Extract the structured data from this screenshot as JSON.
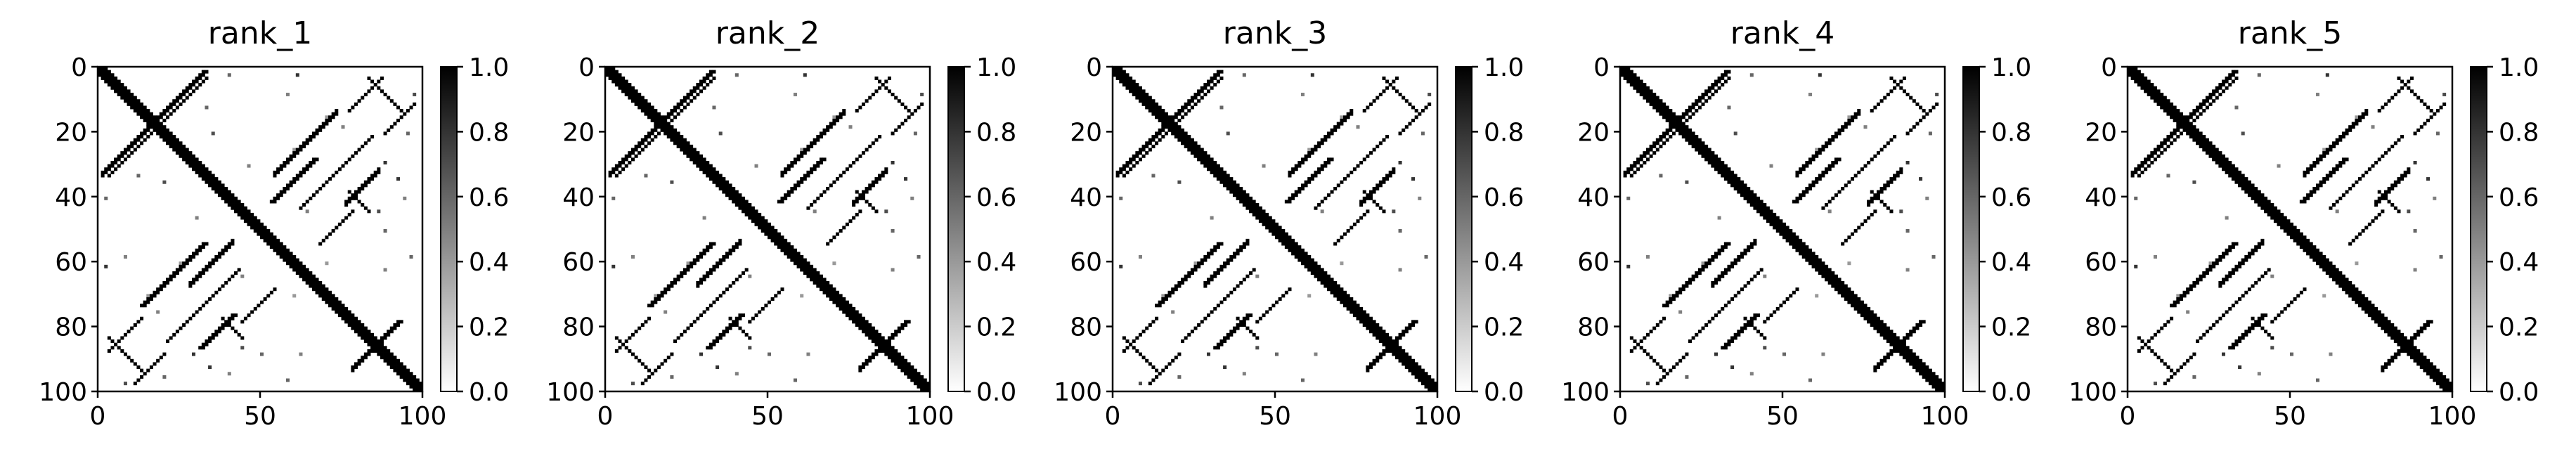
{
  "chart_data": [
    {
      "type": "heatmap",
      "title": "rank_1",
      "xlim": [
        0,
        100
      ],
      "ylim": [
        100,
        0
      ],
      "xticks": [
        "0",
        "50",
        "100"
      ],
      "yticks": [
        "0",
        "20",
        "40",
        "60",
        "80",
        "100"
      ],
      "colorbar_ticks": [
        "1.0",
        "0.8",
        "0.6",
        "0.4",
        "0.2",
        "0.0"
      ],
      "colorbar_range": [
        0.0,
        1.0
      ],
      "colormap": "Greys"
    },
    {
      "type": "heatmap",
      "title": "rank_2",
      "xlim": [
        0,
        100
      ],
      "ylim": [
        100,
        0
      ],
      "xticks": [
        "0",
        "50",
        "100"
      ],
      "yticks": [
        "0",
        "20",
        "40",
        "60",
        "80",
        "100"
      ],
      "colorbar_ticks": [
        "1.0",
        "0.8",
        "0.6",
        "0.4",
        "0.2",
        "0.0"
      ],
      "colorbar_range": [
        0.0,
        1.0
      ],
      "colormap": "Greys"
    },
    {
      "type": "heatmap",
      "title": "rank_3",
      "xlim": [
        0,
        100
      ],
      "ylim": [
        100,
        0
      ],
      "xticks": [
        "0",
        "50",
        "100"
      ],
      "yticks": [
        "0",
        "20",
        "40",
        "60",
        "80",
        "100"
      ],
      "colorbar_ticks": [
        "1.0",
        "0.8",
        "0.6",
        "0.4",
        "0.2",
        "0.0"
      ],
      "colorbar_range": [
        0.0,
        1.0
      ],
      "colormap": "Greys"
    },
    {
      "type": "heatmap",
      "title": "rank_4",
      "xlim": [
        0,
        100
      ],
      "ylim": [
        100,
        0
      ],
      "xticks": [
        "0",
        "50",
        "100"
      ],
      "yticks": [
        "0",
        "20",
        "40",
        "60",
        "80",
        "100"
      ],
      "colorbar_ticks": [
        "1.0",
        "0.8",
        "0.6",
        "0.4",
        "0.2",
        "0.0"
      ],
      "colorbar_range": [
        0.0,
        1.0
      ],
      "colormap": "Greys"
    },
    {
      "type": "heatmap",
      "title": "rank_5",
      "xlim": [
        0,
        100
      ],
      "ylim": [
        100,
        0
      ],
      "xticks": [
        "0",
        "50",
        "100"
      ],
      "yticks": [
        "0",
        "20",
        "40",
        "60",
        "80",
        "100"
      ],
      "colorbar_ticks": [
        "1.0",
        "0.8",
        "0.6",
        "0.4",
        "0.2",
        "0.0"
      ],
      "colorbar_range": [
        0.0,
        1.0
      ],
      "colormap": "Greys"
    }
  ],
  "contact_pattern": {
    "size": 100,
    "main_diagonal": {
      "from": 0,
      "to": 100,
      "width": 2
    },
    "segments": [
      {
        "kind": "anti",
        "i": [
          1,
          18
        ],
        "j": [
          32,
          15
        ],
        "width": 2
      },
      {
        "kind": "anti",
        "i": [
          12,
          33
        ],
        "j": [
          24,
          3
        ],
        "width": 1
      },
      {
        "kind": "anti",
        "i": [
          28,
          41
        ],
        "j": [
          66,
          53
        ],
        "width": 2
      },
      {
        "kind": "anti",
        "i": [
          44,
          54
        ],
        "j": [
          78,
          68
        ],
        "width": 1
      },
      {
        "kind": "anti",
        "i": [
          54,
          73
        ],
        "j": [
          32,
          13
        ],
        "width": 2
      },
      {
        "kind": "anti",
        "i": [
          62,
          84
        ],
        "j": [
          43,
          21
        ],
        "width": 1
      },
      {
        "kind": "anti",
        "i": [
          76,
          86
        ],
        "j": [
          41,
          31
        ],
        "width": 2
      },
      {
        "kind": "anti",
        "i": [
          3,
          13
        ],
        "j": [
          87,
          77
        ],
        "width": 1
      },
      {
        "kind": "anti",
        "i": [
          11,
          20
        ],
        "j": [
          97,
          88
        ],
        "width": 1
      },
      {
        "kind": "anti",
        "i": [
          78,
          92
        ],
        "j": [
          92,
          78
        ],
        "width": 2
      },
      {
        "kind": "par",
        "i": [
          3,
          12
        ],
        "j": [
          83,
          92
        ],
        "width": 1
      },
      {
        "kind": "par",
        "i": [
          83,
          93
        ],
        "j": [
          3,
          13
        ],
        "width": 1
      },
      {
        "kind": "par",
        "i": [
          38,
          44
        ],
        "j": [
          77,
          83
        ],
        "width": 1
      },
      {
        "kind": "par",
        "i": [
          77,
          83
        ],
        "j": [
          38,
          44
        ],
        "width": 1
      }
    ],
    "scatter": [
      [
        2,
        40,
        0.6
      ],
      [
        8,
        58,
        0.5
      ],
      [
        20,
        35,
        0.7
      ],
      [
        25,
        60,
        0.4
      ],
      [
        29,
        88,
        0.8
      ],
      [
        33,
        12,
        0.6
      ],
      [
        46,
        30,
        0.5
      ],
      [
        50,
        88,
        0.6
      ],
      [
        61,
        2,
        0.8
      ],
      [
        64,
        44,
        0.5
      ],
      [
        70,
        60,
        0.4
      ],
      [
        88,
        62,
        0.5
      ],
      [
        92,
        34,
        0.8
      ],
      [
        95,
        20,
        0.6
      ],
      [
        97,
        8,
        0.7
      ],
      [
        58,
        96,
        0.6
      ],
      [
        40,
        94,
        0.5
      ],
      [
        15,
        70,
        0.4
      ],
      [
        75,
        18,
        0.5
      ],
      [
        86,
        44,
        0.7
      ]
    ]
  }
}
